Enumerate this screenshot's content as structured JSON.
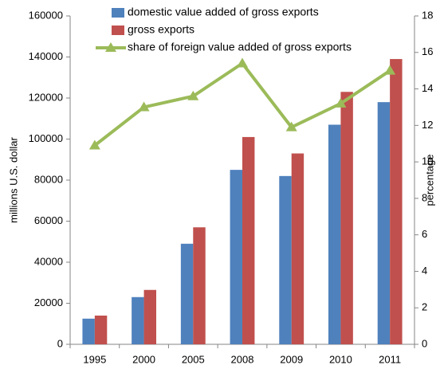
{
  "chart_data": {
    "type": "bar",
    "categories": [
      "1995",
      "2000",
      "2005",
      "2008",
      "2009",
      "2010",
      "2011"
    ],
    "series": [
      {
        "name": "domestic value added of gross exports",
        "color": "#4f81bd",
        "values": [
          12500,
          23000,
          49000,
          85000,
          82000,
          107000,
          118000
        ]
      },
      {
        "name": "gross exports",
        "color": "#c0504d",
        "values": [
          14000,
          26500,
          57000,
          101000,
          93000,
          123000,
          139000
        ]
      },
      {
        "name": "share of foreign value added of gross exports",
        "color": "#9bbb59",
        "type": "line",
        "axis": "y2",
        "values": [
          10.9,
          13.0,
          13.6,
          15.4,
          11.9,
          13.2,
          15.0
        ]
      }
    ],
    "ylabel": "millions U.S. dollar",
    "y2label": "percentage",
    "ylim": [
      0,
      160000
    ],
    "yticks": [
      0,
      20000,
      40000,
      60000,
      80000,
      100000,
      120000,
      140000,
      160000
    ],
    "y2lim": [
      0,
      18
    ],
    "y2ticks": [
      0,
      2,
      4,
      6,
      8,
      10,
      12,
      14,
      16,
      18
    ],
    "legend": "top"
  }
}
